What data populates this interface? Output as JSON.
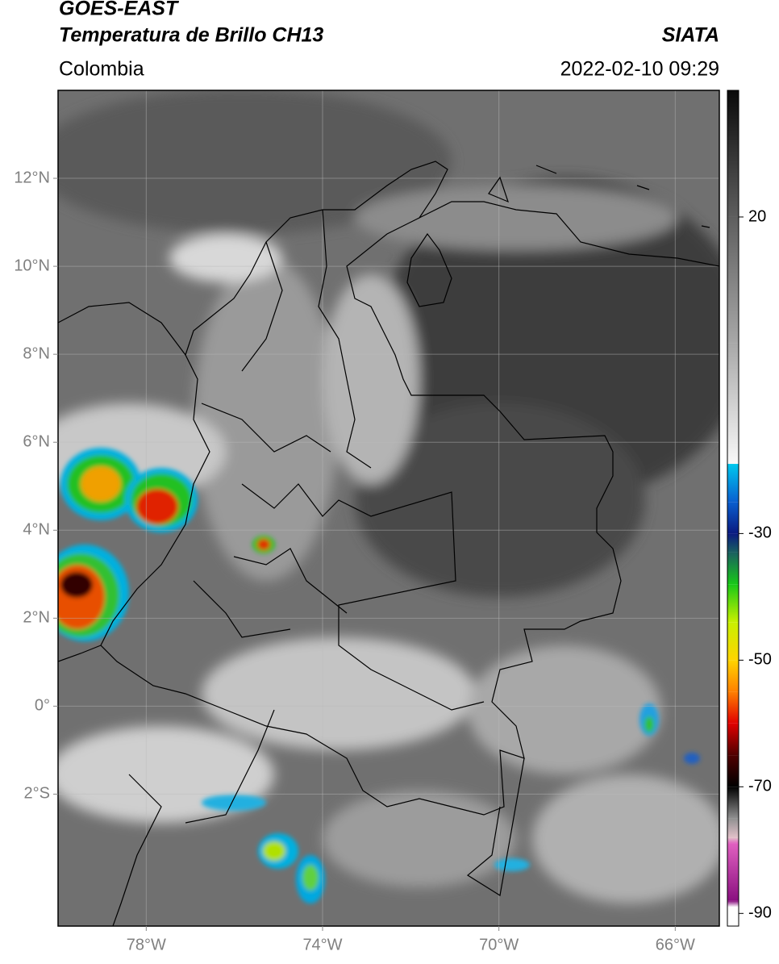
{
  "header": {
    "satellite": "GOES-EAST",
    "product": "Temperatura de Brillo CH13",
    "source": "SIATA",
    "region": "Colombia",
    "timestamp": "2022-02-10 09:29"
  },
  "map": {
    "lonlim": [
      -80,
      -65
    ],
    "latlim": [
      -5,
      14
    ],
    "grid": true,
    "xticks": [
      {
        "value": -78,
        "label": "78°W"
      },
      {
        "value": -74,
        "label": "74°W"
      },
      {
        "value": -70,
        "label": "70°W"
      },
      {
        "value": -66,
        "label": "66°W"
      }
    ],
    "yticks": [
      {
        "value": 12,
        "label": "12°N"
      },
      {
        "value": 10,
        "label": "10°N"
      },
      {
        "value": 8,
        "label": "8°N"
      },
      {
        "value": 6,
        "label": "6°N"
      },
      {
        "value": 4,
        "label": "4°N"
      },
      {
        "value": 2,
        "label": "2°N"
      },
      {
        "value": 0,
        "label": "0°"
      },
      {
        "value": -2,
        "label": "2°S"
      }
    ],
    "colorbar": {
      "lim": [
        -92,
        40
      ],
      "ticks": [
        20,
        -30,
        -50,
        -70,
        -90
      ],
      "colormap": [
        {
          "value": 40,
          "color": "#0a0a0a"
        },
        {
          "value": 20,
          "color": "#5e5e5e"
        },
        {
          "value": 0,
          "color": "#a8a8a8"
        },
        {
          "value": -19,
          "color": "#f8f8f8"
        },
        {
          "value": -19,
          "color": "#00c8ee"
        },
        {
          "value": -25,
          "color": "#0a5fd0"
        },
        {
          "value": -30,
          "color": "#0a1a80"
        },
        {
          "value": -33,
          "color": "#1a6060"
        },
        {
          "value": -38,
          "color": "#18c818"
        },
        {
          "value": -44,
          "color": "#c8f000"
        },
        {
          "value": -50,
          "color": "#ffd400"
        },
        {
          "value": -55,
          "color": "#ff8000"
        },
        {
          "value": -60,
          "color": "#e00000"
        },
        {
          "value": -65,
          "color": "#500000"
        },
        {
          "value": -70,
          "color": "#000000"
        },
        {
          "value": -75,
          "color": "#909090"
        },
        {
          "value": -78,
          "color": "#e0c0c8"
        },
        {
          "value": -79,
          "color": "#e060c0"
        },
        {
          "value": -88,
          "color": "#8a1080"
        },
        {
          "value": -89,
          "color": "#ffffff"
        },
        {
          "value": -92,
          "color": "#ffffff"
        }
      ]
    }
  }
}
